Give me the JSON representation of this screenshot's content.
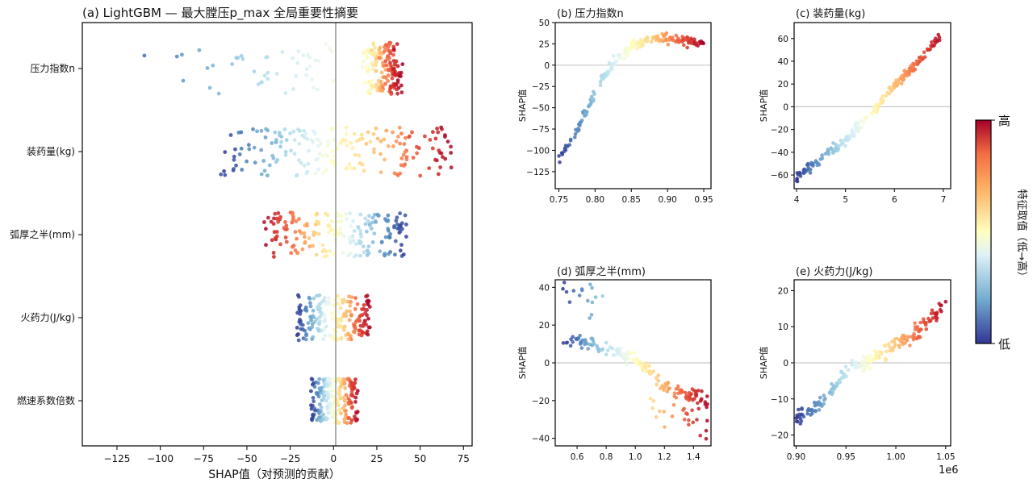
{
  "colors": {
    "low": "#313695",
    "high": "#a50026",
    "colormap": "RdYlBu_r",
    "zero_line_main": "#8a8a8a",
    "zero_line_dependence": "#c8c8c8"
  },
  "chart_data": [
    {
      "id": "a",
      "type": "scatter",
      "subtype": "beeswarm",
      "title": "(a) LightGBM — 最大膛压p_max 全局重要性摘要",
      "xlabel": "SHAP值（对预测的贡献）",
      "ylabel": "",
      "xlim": [
        -145,
        80
      ],
      "xticks": [
        -125,
        -100,
        -75,
        -50,
        -25,
        0,
        25,
        50,
        75
      ],
      "xtick_labels": [
        "−125",
        "−100",
        "−75",
        "−50",
        "−25",
        "0",
        "25",
        "50",
        "75"
      ],
      "grid": false,
      "zero_line": true,
      "categories": [
        "压力指数n",
        "装药量(kg)",
        "弧厚之半(mm)",
        "火药力(J/kg)",
        "燃速系数倍数"
      ],
      "features": [
        {
          "name": "压力指数n",
          "shap_min": -133,
          "shap_max": 40,
          "relation": "positive"
        },
        {
          "name": "装药量(kg)",
          "shap_min": -65,
          "shap_max": 68,
          "relation": "positive"
        },
        {
          "name": "弧厚之半(mm)",
          "shap_min": -40,
          "shap_max": 42,
          "relation": "negative"
        },
        {
          "name": "火药力(J/kg)",
          "shap_min": -21,
          "shap_max": 21,
          "relation": "positive"
        },
        {
          "name": "燃速系数倍数",
          "shap_min": -13,
          "shap_max": 14,
          "relation": "positive"
        }
      ]
    },
    {
      "id": "b",
      "type": "scatter",
      "subtype": "dependence",
      "title": "(b) 压力指数n",
      "ylabel": "SHAP值",
      "xlabel": "",
      "xlim": [
        0.745,
        0.96
      ],
      "ylim": [
        -145,
        50
      ],
      "xticks": [
        0.75,
        0.8,
        0.85,
        0.9,
        0.95
      ],
      "xtick_labels": [
        "0.75",
        "0.80",
        "0.85",
        "0.90",
        "0.95"
      ],
      "yticks": [
        -125,
        -100,
        -75,
        -50,
        -25,
        0,
        25,
        50
      ],
      "ytick_labels": [
        "−125",
        "−100",
        "−75",
        "−50",
        "−25",
        "0",
        "25",
        "50"
      ],
      "zero_line": true,
      "trend": [
        [
          0.75,
          -110
        ],
        [
          0.77,
          -85
        ],
        [
          0.79,
          -50
        ],
        [
          0.81,
          -15
        ],
        [
          0.83,
          8
        ],
        [
          0.85,
          22
        ],
        [
          0.87,
          30
        ],
        [
          0.89,
          32
        ],
        [
          0.91,
          31
        ],
        [
          0.93,
          28
        ],
        [
          0.95,
          24
        ]
      ]
    },
    {
      "id": "c",
      "type": "scatter",
      "subtype": "dependence",
      "title": "(c) 装药量(kg)",
      "ylabel": "SHAP值",
      "xlabel": "",
      "xlim": [
        3.95,
        7.15
      ],
      "ylim": [
        -72,
        74
      ],
      "xticks": [
        4,
        5,
        6,
        7
      ],
      "xtick_labels": [
        "4",
        "5",
        "6",
        "7"
      ],
      "yticks": [
        -60,
        -40,
        -20,
        0,
        20,
        40,
        60
      ],
      "ytick_labels": [
        "−60",
        "−40",
        "−20",
        "0",
        "20",
        "40",
        "60"
      ],
      "zero_line": true,
      "trend": [
        [
          4,
          -62
        ],
        [
          4.5,
          -45
        ],
        [
          5,
          -30
        ],
        [
          5.5,
          -8
        ],
        [
          6,
          20
        ],
        [
          6.5,
          40
        ],
        [
          7,
          65
        ]
      ]
    },
    {
      "id": "d",
      "type": "scatter",
      "subtype": "dependence",
      "title": "(d) 弧厚之半(mm)",
      "ylabel": "SHAP值",
      "xlabel": "",
      "xlim": [
        0.45,
        1.52
      ],
      "ylim": [
        -44,
        44
      ],
      "xticks": [
        0.6,
        0.8,
        1.0,
        1.2,
        1.4
      ],
      "xtick_labels": [
        "0.6",
        "0.8",
        "1.0",
        "1.2",
        "1.4"
      ],
      "yticks": [
        -40,
        -20,
        0,
        20,
        40
      ],
      "ytick_labels": [
        "−40",
        "−20",
        "0",
        "20",
        "40"
      ],
      "zero_line": true,
      "trend": [
        [
          0.5,
          11
        ],
        [
          0.6,
          11
        ],
        [
          0.7,
          10
        ],
        [
          0.8,
          8
        ],
        [
          0.9,
          4
        ],
        [
          1.0,
          2
        ],
        [
          1.1,
          -5
        ],
        [
          1.2,
          -12
        ],
        [
          1.3,
          -15
        ],
        [
          1.4,
          -18
        ],
        [
          1.5,
          -20
        ]
      ]
    },
    {
      "id": "e",
      "type": "scatter",
      "subtype": "dependence",
      "title": "(e) 火药力(J/kg)",
      "ylabel": "SHAP值",
      "xlabel": "",
      "x_offset_label": "1e6",
      "xlim": [
        898000,
        1055000
      ],
      "ylim": [
        -23,
        23
      ],
      "xticks": [
        900000,
        950000,
        1000000,
        1050000
      ],
      "xtick_labels": [
        "0.90",
        "0.95",
        "1.00",
        "1.05"
      ],
      "yticks": [
        -20,
        -10,
        0,
        10,
        20
      ],
      "ytick_labels": [
        "−20",
        "−10",
        "0",
        "10",
        "20"
      ],
      "zero_line": true,
      "trend": [
        [
          900000,
          -16
        ],
        [
          930000,
          -10
        ],
        [
          950000,
          -2
        ],
        [
          970000,
          0
        ],
        [
          1000000,
          5
        ],
        [
          1025000,
          9
        ],
        [
          1050000,
          17
        ]
      ]
    }
  ],
  "colorbar": {
    "label": "特征取值（低→高）",
    "high_label": "高",
    "low_label": "低"
  }
}
